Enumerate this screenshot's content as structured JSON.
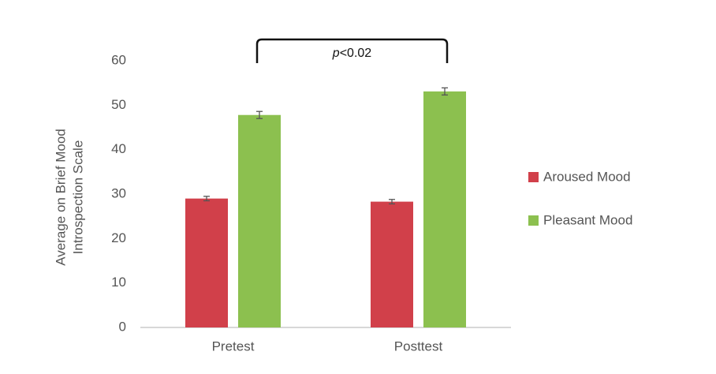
{
  "chart_data": {
    "type": "bar",
    "ylabel": [
      "Average on Brief Mood",
      "Introspection Scale"
    ],
    "annotation": [
      "p",
      "<0.02"
    ],
    "categories": [
      "Pretest",
      "Posttest"
    ],
    "series": [
      {
        "name": "Aroused Mood",
        "color": "#d1404a",
        "values": [
          29,
          28.3
        ],
        "errors": [
          0.5,
          0.5
        ]
      },
      {
        "name": "Pleasant Mood",
        "color": "#8cc04f",
        "values": [
          47.8,
          53.1
        ],
        "errors": [
          0.8,
          0.8
        ]
      }
    ],
    "ylim": [
      0,
      60
    ],
    "yticks": [
      0,
      10,
      20,
      30,
      40,
      50,
      60
    ],
    "grid": false,
    "legend": "right"
  }
}
